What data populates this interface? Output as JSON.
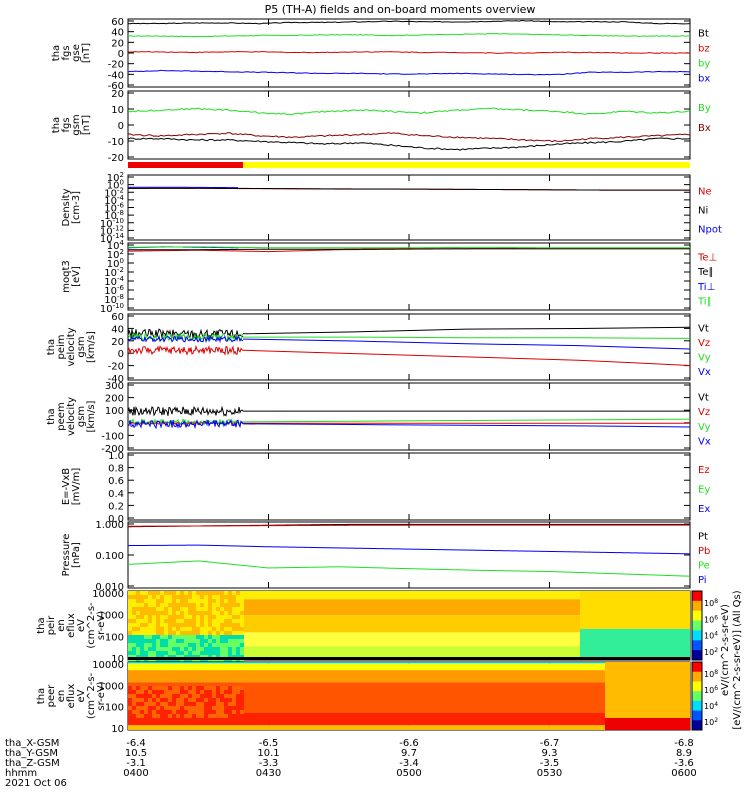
{
  "title": "P5 (TH-A) fields and on-board moments overview",
  "footer": {
    "row_labels": [
      "tha_X-GSM",
      "tha_Y-GSM",
      "tha_Z-GSM",
      "hhmm",
      "2021 Oct 06"
    ],
    "columns": [
      {
        "x": "-6.4",
        "y": "10.5",
        "z": "-3.1",
        "hhmm": "0400"
      },
      {
        "x": "-6.5",
        "y": "10.1",
        "z": "-3.3",
        "hhmm": "0430"
      },
      {
        "x": "-6.6",
        "y": "9.7",
        "z": "-3.4",
        "hhmm": "0500"
      },
      {
        "x": "-6.7",
        "y": "9.3",
        "z": "-3.5",
        "hhmm": "0530"
      },
      {
        "x": "-6.8",
        "y": "8.9",
        "z": "-3.6",
        "hhmm": "0600"
      }
    ]
  },
  "colorbar_label": "[eV/(cm^2-s-sr-eV)] (All Qs)",
  "colorbar2_label": "eV/(cm^2-s-sr-eV)",
  "colorbar_ticks": [
    "10^8",
    "10^6",
    "10^4",
    "10^2"
  ],
  "colors": {
    "black": "#000000",
    "red": "#dd0000",
    "green": "#22dd22",
    "blue": "#0000ee",
    "darkred": "#880000",
    "quality_red": "#ee0000",
    "quality_yellow": "#ffff00"
  },
  "chart_data": [
    {
      "type": "line",
      "ylabel": [
        "tha",
        "fgs",
        "gse",
        "[nT]"
      ],
      "ylim": [
        -60,
        60
      ],
      "yticks": [
        "60",
        "40",
        "20",
        "0",
        "-20",
        "-40",
        "-60"
      ],
      "series": [
        {
          "name": "Bt",
          "color": "black",
          "values": [
            52,
            52,
            53,
            53,
            52,
            54,
            54,
            55,
            56,
            55,
            55,
            56,
            57,
            55,
            55,
            55,
            52,
            52
          ]
        },
        {
          "name": "bz",
          "color": "red",
          "values": [
            2,
            2,
            1,
            2,
            2,
            1,
            1,
            2,
            2,
            1,
            1,
            0,
            0,
            1,
            1,
            0,
            0,
            0
          ]
        },
        {
          "name": "by",
          "color": "green",
          "values": [
            30,
            30,
            29,
            30,
            31,
            31,
            32,
            32,
            31,
            32,
            33,
            34,
            33,
            32,
            31,
            30,
            30,
            30
          ]
        },
        {
          "name": "bx",
          "color": "blue",
          "values": [
            -33,
            -31,
            -32,
            -33,
            -34,
            -35,
            -36,
            -36,
            -37,
            -37,
            -36,
            -37,
            -38,
            -38,
            -34,
            -34,
            -33,
            -33
          ]
        }
      ]
    },
    {
      "type": "line",
      "ylabel": [
        "tha",
        "fgs",
        "gsm",
        "[nT]"
      ],
      "ylim": [
        -25,
        25
      ],
      "yticks": [
        "20",
        "10",
        "0",
        "-10",
        "-20"
      ],
      "series": [
        {
          "name": "By",
          "color": "green",
          "values": [
            10,
            11,
            12,
            11,
            9,
            8,
            10,
            11,
            10,
            9,
            11,
            12,
            11,
            10,
            8,
            10,
            9,
            10
          ]
        },
        {
          "name": "Bx",
          "color": "darkred",
          "values": [
            -7,
            -8,
            -7,
            -6,
            -8,
            -9,
            -8,
            -7,
            -6,
            -8,
            -9,
            -10,
            -11,
            -12,
            -10,
            -9,
            -8,
            -7
          ]
        },
        {
          "name": "",
          "color": "black",
          "values": [
            -10,
            -10,
            -11,
            -11,
            -12,
            -13,
            -14,
            -13,
            -15,
            -17,
            -18,
            -17,
            -16,
            -14,
            -13,
            -12,
            -10,
            -10
          ]
        }
      ]
    },
    {
      "type": "line",
      "ylabel": [
        "Density",
        "[cm-3]"
      ],
      "ylim": [
        -14,
        4
      ],
      "yticks": [
        "10^2",
        "10^0",
        "10^-2",
        "10^-4",
        "10^-6",
        "10^-8",
        "10^-10",
        "10^-12",
        "10^-14"
      ],
      "series": [
        {
          "name": "Ne",
          "color": "red",
          "values": [
            0.3,
            0.3,
            0.2,
            0.1,
            0.1,
            0.0,
            -0.1,
            -0.2,
            -0.2
          ]
        },
        {
          "name": "Ni",
          "color": "black",
          "values": [
            0.3,
            0.35,
            0.25,
            0.15,
            0.1,
            0.0,
            -0.1,
            -0.2,
            -0.2
          ]
        },
        {
          "name": "Npot",
          "color": "blue",
          "values": [
            0.6,
            0.6,
            0.5
          ]
        }
      ]
    },
    {
      "type": "line",
      "ylabel": [
        "moqt3",
        "[eV]"
      ],
      "ylim": [
        -10,
        4
      ],
      "yticks": [
        "10^4",
        "10^2",
        "10^0",
        "10^-2",
        "10^-4",
        "10^-6",
        "10^-8",
        "10^-10"
      ],
      "series": [
        {
          "name": "Te⊥",
          "color": "red",
          "values": [
            2.3,
            2.5,
            2.2,
            2.6,
            2.7,
            2.8,
            2.8,
            2.8,
            2.8
          ]
        },
        {
          "name": "Te∥",
          "color": "black",
          "values": [
            2.6,
            2.6,
            2.7,
            2.7,
            2.8,
            2.8,
            2.8,
            2.8,
            2.8
          ]
        },
        {
          "name": "Ti⊥",
          "color": "blue",
          "values": [
            3.0,
            3.2,
            3.1,
            3.0
          ]
        },
        {
          "name": "Ti∥",
          "color": "green",
          "values": [
            3.1,
            3.2,
            3.0,
            3.0,
            3.0,
            3.1,
            3.0,
            3.0,
            3.0
          ]
        }
      ]
    },
    {
      "type": "line",
      "ylabel": [
        "tha",
        "peim",
        "velocity",
        "gsm",
        "[km/s]"
      ],
      "ylim": [
        -40,
        60
      ],
      "yticks": [
        "60",
        "40",
        "20",
        "0",
        "-20",
        "-40"
      ],
      "series": [
        {
          "name": "Vt",
          "color": "black",
          "values": [
            30,
            33,
            37,
            38,
            40
          ]
        },
        {
          "name": "Vz",
          "color": "red",
          "values": [
            5,
            0,
            -5,
            -10,
            -18
          ]
        },
        {
          "name": "Vy",
          "color": "green",
          "values": [
            25,
            25,
            24,
            24,
            23
          ]
        },
        {
          "name": "Vx",
          "color": "blue",
          "values": [
            22,
            19,
            15,
            12,
            7
          ]
        }
      ]
    },
    {
      "type": "line",
      "ylabel": [
        "tha",
        "peem",
        "velocity",
        "gsm",
        "[km/s]"
      ],
      "ylim": [
        -200,
        300
      ],
      "yticks": [
        "300",
        "200",
        "100",
        "0",
        "-100",
        "-200"
      ],
      "series": [
        {
          "name": "Vt",
          "color": "black",
          "values": [
            90,
            90,
            90,
            90,
            90
          ]
        },
        {
          "name": "Vz",
          "color": "red",
          "values": [
            0,
            0,
            0,
            0,
            0
          ]
        },
        {
          "name": "Vy",
          "color": "green",
          "values": [
            10,
            15,
            20,
            25,
            30
          ]
        },
        {
          "name": "Vx",
          "color": "blue",
          "values": [
            -5,
            -10,
            -15,
            -20,
            -28
          ]
        }
      ]
    },
    {
      "type": "line",
      "ylabel": [
        "E=-VxB",
        "[mV/m]"
      ],
      "ylim": [
        0,
        1
      ],
      "yticks": [
        "1.0",
        "0.8",
        "0.6",
        "0.4",
        "0.2",
        "0.0"
      ],
      "series": [
        {
          "name": "Ez",
          "color": "red",
          "values": []
        },
        {
          "name": "Ey",
          "color": "green",
          "values": []
        },
        {
          "name": "Ex",
          "color": "blue",
          "values": []
        }
      ]
    },
    {
      "type": "line",
      "ylabel": [
        "Pressure",
        "[nPa]"
      ],
      "ylim": [
        -2.7,
        0.1
      ],
      "yticks": [
        "1.000",
        "0.100",
        "0.010"
      ],
      "series": [
        {
          "name": "Pt",
          "color": "black",
          "values": [
            -0.1,
            -0.05,
            0.0,
            0.0,
            0.0,
            0.0
          ]
        },
        {
          "name": "Pb",
          "color": "red",
          "values": [
            -0.08,
            -0.06,
            -0.04,
            -0.03,
            -0.03,
            -0.03
          ]
        },
        {
          "name": "Pe",
          "color": "green",
          "values": [
            -1.7,
            -1.55,
            -1.85,
            -1.8,
            -1.88,
            -1.95,
            -2.0,
            -2.1,
            -2.2
          ]
        },
        {
          "name": "Pi",
          "color": "blue",
          "values": [
            -0.9,
            -0.88,
            -0.95,
            -1.0,
            -1.05,
            -1.1,
            -1.15,
            -1.2,
            -1.25
          ]
        }
      ]
    },
    {
      "type": "heatmap",
      "ylabel": [
        "tha",
        "peir",
        "en",
        "eflux",
        "eV",
        "(cm^2-s-",
        "sr-eV)"
      ],
      "yticks": [
        "10000",
        "1000",
        "100",
        "10"
      ]
    },
    {
      "type": "heatmap",
      "ylabel": [
        "tha",
        "peer",
        "en",
        "eflux",
        "eV",
        "(cm^2-s-",
        "sr-eV)"
      ],
      "yticks": [
        "10000",
        "1000",
        "100",
        "10"
      ]
    }
  ]
}
